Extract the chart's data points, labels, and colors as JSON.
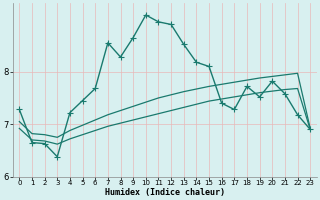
{
  "xlabel": "Humidex (Indice chaleur)",
  "xlim": [
    -0.5,
    23.5
  ],
  "ylim": [
    6,
    9.3
  ],
  "yticks": [
    6,
    7,
    8
  ],
  "xticks": [
    0,
    1,
    2,
    3,
    4,
    5,
    6,
    7,
    8,
    9,
    10,
    11,
    12,
    13,
    14,
    15,
    16,
    17,
    18,
    19,
    20,
    21,
    22,
    23
  ],
  "bg_color": "#d8f0f0",
  "line_color": "#1a7a6e",
  "grid_color": "#c8e8e8",
  "line_main_x": [
    0,
    1,
    2,
    3,
    4,
    5,
    6,
    7,
    8,
    9,
    10,
    11,
    12,
    13,
    14,
    15,
    16,
    17,
    18,
    19,
    20,
    21,
    22,
    23
  ],
  "line_main_y": [
    7.28,
    6.65,
    6.63,
    6.38,
    7.22,
    7.45,
    7.68,
    8.55,
    8.28,
    8.65,
    9.08,
    8.95,
    8.9,
    8.52,
    8.18,
    8.1,
    7.4,
    7.28,
    7.72,
    7.52,
    7.82,
    7.58,
    7.18,
    6.9
  ],
  "line_upper_x": [
    0,
    1,
    2,
    3,
    4,
    5,
    6,
    7,
    8,
    9,
    10,
    11,
    12,
    13,
    14,
    15,
    16,
    17,
    18,
    19,
    20,
    21,
    22,
    23
  ],
  "line_upper_y": [
    7.05,
    6.82,
    6.8,
    6.75,
    6.88,
    6.98,
    7.08,
    7.18,
    7.26,
    7.34,
    7.42,
    7.5,
    7.56,
    7.62,
    7.67,
    7.72,
    7.76,
    7.8,
    7.84,
    7.88,
    7.91,
    7.94,
    7.97,
    6.92
  ],
  "line_lower_x": [
    0,
    1,
    2,
    3,
    4,
    5,
    6,
    7,
    8,
    9,
    10,
    11,
    12,
    13,
    14,
    15,
    16,
    17,
    18,
    19,
    20,
    21,
    22,
    23
  ],
  "line_lower_y": [
    6.92,
    6.7,
    6.68,
    6.62,
    6.72,
    6.8,
    6.88,
    6.96,
    7.02,
    7.08,
    7.14,
    7.2,
    7.26,
    7.32,
    7.38,
    7.44,
    7.48,
    7.52,
    7.56,
    7.6,
    7.63,
    7.66,
    7.68,
    6.9
  ]
}
